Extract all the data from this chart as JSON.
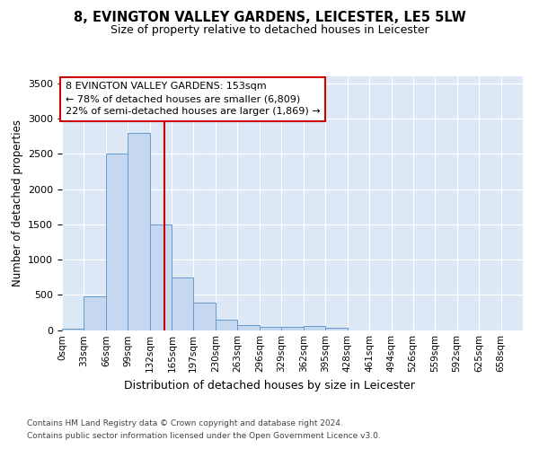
{
  "title": "8, EVINGTON VALLEY GARDENS, LEICESTER, LE5 5LW",
  "subtitle": "Size of property relative to detached houses in Leicester",
  "xlabel": "Distribution of detached houses by size in Leicester",
  "ylabel": "Number of detached properties",
  "bar_color": "#c5d8ef",
  "bar_edge_color": "#6699cc",
  "plot_bg_color": "#dce8f5",
  "annotation_text": "8 EVINGTON VALLEY GARDENS: 153sqm\n← 78% of detached houses are smaller (6,809)\n22% of semi-detached houses are larger (1,869) →",
  "vline_x": 153,
  "vline_color": "#cc0000",
  "categories": [
    "0sqm",
    "33sqm",
    "66sqm",
    "99sqm",
    "132sqm",
    "165sqm",
    "197sqm",
    "230sqm",
    "263sqm",
    "296sqm",
    "329sqm",
    "362sqm",
    "395sqm",
    "428sqm",
    "461sqm",
    "494sqm",
    "526sqm",
    "559sqm",
    "592sqm",
    "625sqm",
    "658sqm"
  ],
  "bin_edges": [
    0,
    33,
    66,
    99,
    132,
    165,
    197,
    230,
    263,
    296,
    329,
    362,
    395,
    428,
    461,
    494,
    526,
    559,
    592,
    625,
    658,
    691
  ],
  "values": [
    18,
    475,
    2500,
    2800,
    1500,
    750,
    390,
    145,
    75,
    50,
    40,
    55,
    28,
    0,
    0,
    0,
    0,
    0,
    0,
    0,
    0
  ],
  "ylim": [
    0,
    3600
  ],
  "yticks": [
    0,
    500,
    1000,
    1500,
    2000,
    2500,
    3000,
    3500
  ],
  "footnote1": "Contains HM Land Registry data © Crown copyright and database right 2024.",
  "footnote2": "Contains public sector information licensed under the Open Government Licence v3.0."
}
